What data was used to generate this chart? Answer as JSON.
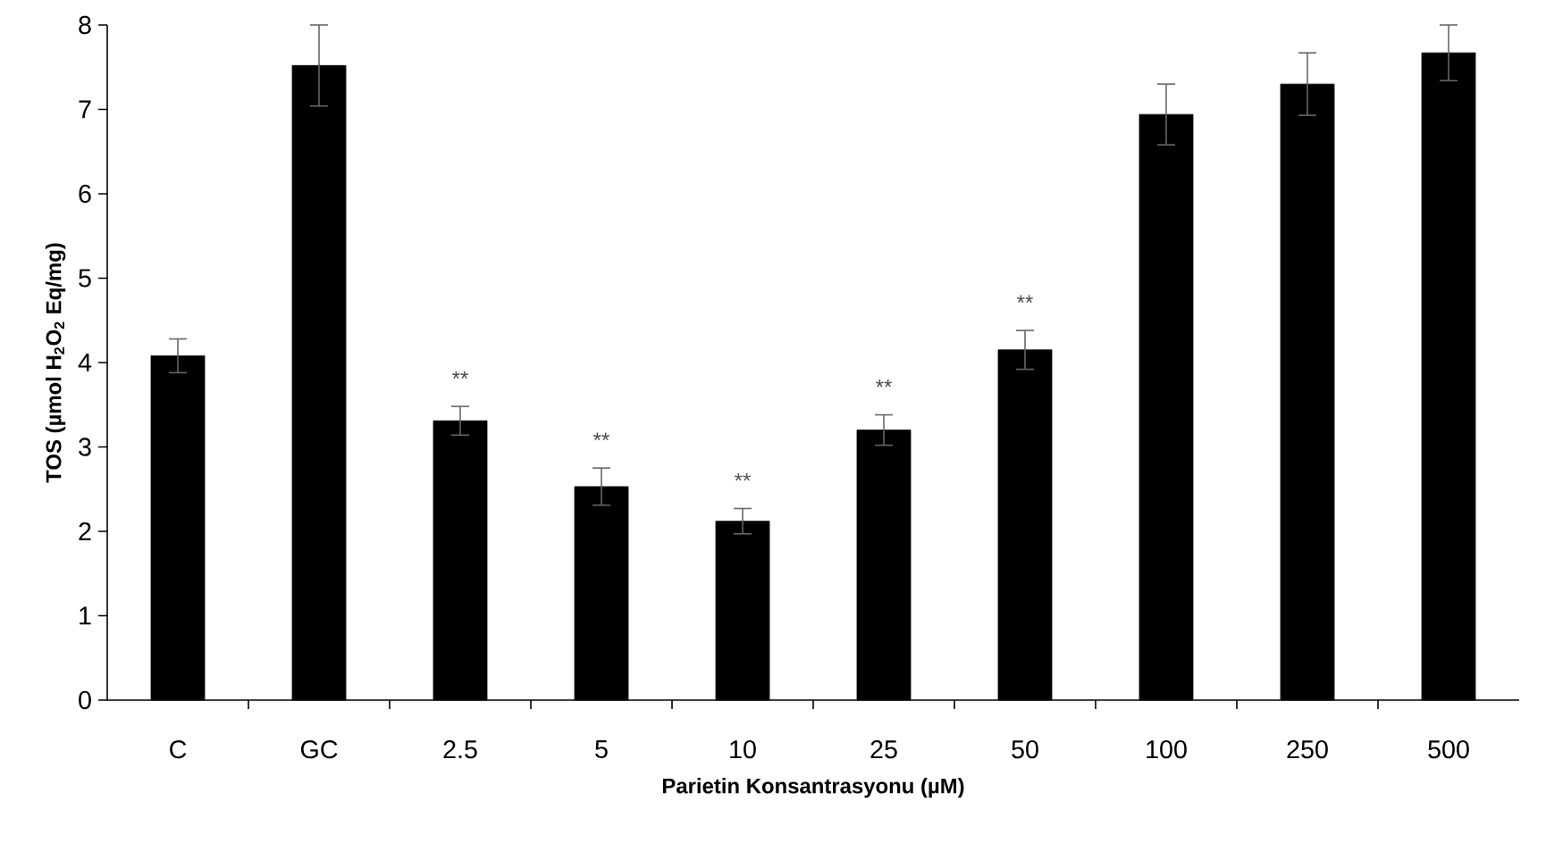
{
  "chart_data": {
    "type": "bar",
    "xlabel": "Parietin Konsantrasyonu  (µM)",
    "ylabel": "TOS (µmol H$_{2}$O$_{2}$ Eq/mg)",
    "categories": [
      "C",
      "GC",
      "2.5",
      "5",
      "10",
      "25",
      "50",
      "100",
      "250",
      "500"
    ],
    "values": [
      4.08,
      7.52,
      3.31,
      2.53,
      2.12,
      3.2,
      4.15,
      6.94,
      7.3,
      7.67
    ],
    "errors": [
      0.2,
      0.48,
      0.17,
      0.22,
      0.15,
      0.18,
      0.23,
      0.36,
      0.37,
      0.33
    ],
    "color": "#000000",
    "ylim": [
      0,
      8
    ],
    "yticks": [
      0,
      1,
      2,
      3,
      4,
      5,
      6,
      7,
      8
    ],
    "grid": false,
    "annotations": [
      {
        "text": "**",
        "x": "2.5",
        "y": 3.31
      },
      {
        "text": "**",
        "x": "5",
        "y": 2.53
      },
      {
        "text": "**",
        "x": "10",
        "y": 2.12
      },
      {
        "text": "**",
        "x": "25",
        "y": 3.2
      },
      {
        "text": "**",
        "x": "50",
        "y": 4.15
      }
    ]
  }
}
